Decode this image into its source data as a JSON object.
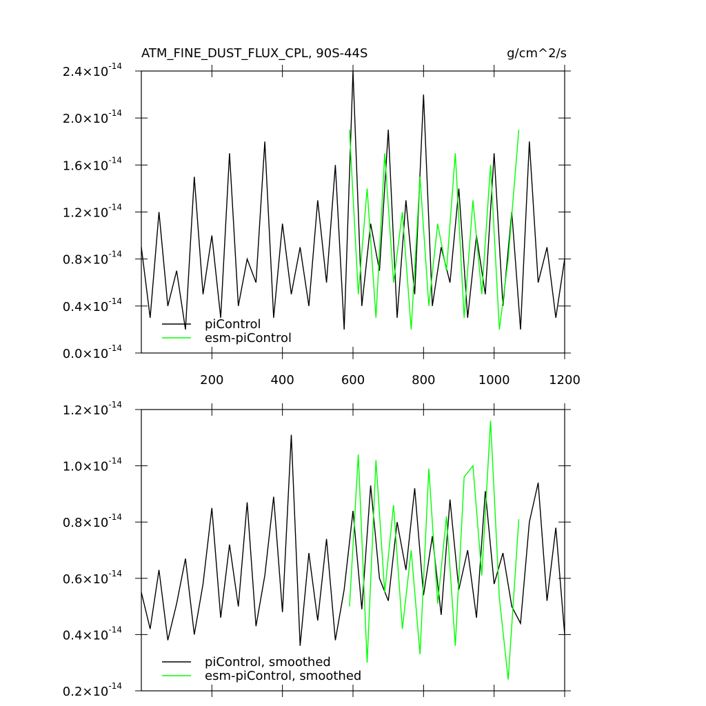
{
  "chart_data": [
    {
      "type": "line",
      "title": "ATM_FINE_DUST_FLUX_CPL, 90S-44S",
      "units": "g/cm^2/s",
      "xlim": [
        0,
        1200
      ],
      "xticks": [
        200,
        400,
        600,
        800,
        1000,
        1200
      ],
      "ylim": [
        0,
        2.4e-14
      ],
      "yticks": [
        {
          "value": 0,
          "label": "0.0×10",
          "exponent": "-14"
        },
        {
          "value": 4e-15,
          "label": "0.4×10",
          "exponent": "-14"
        },
        {
          "value": 8e-15,
          "label": "0.8×10",
          "exponent": "-14"
        },
        {
          "value": 1.2e-14,
          "label": "1.2×10",
          "exponent": "-14"
        },
        {
          "value": 1.6e-14,
          "label": "1.6×10",
          "exponent": "-14"
        },
        {
          "value": 2e-14,
          "label": "2.0×10",
          "exponent": "-14"
        },
        {
          "value": 2.4e-14,
          "label": "2.4×10",
          "exponent": "-14"
        }
      ],
      "series": [
        {
          "name": "piControl",
          "color": "#000000",
          "x": [
            0,
            25,
            50,
            75,
            100,
            125,
            150,
            175,
            200,
            225,
            250,
            275,
            300,
            325,
            350,
            375,
            400,
            425,
            450,
            475,
            500,
            525,
            550,
            575,
            600,
            625,
            650,
            675,
            700,
            725,
            750,
            775,
            800,
            825,
            850,
            875,
            900,
            925,
            950,
            975,
            1000,
            1025,
            1050,
            1075,
            1100,
            1125,
            1150,
            1175,
            1200
          ],
          "values": [
            9e-15,
            3e-15,
            1.2e-14,
            4e-15,
            7e-15,
            2e-15,
            1.5e-14,
            5e-15,
            1e-14,
            3e-15,
            1.7e-14,
            4e-15,
            8e-15,
            6e-15,
            1.8e-14,
            3e-15,
            1.1e-14,
            5e-15,
            9e-15,
            4e-15,
            1.3e-14,
            6e-15,
            1.6e-14,
            2e-15,
            2.4e-14,
            4e-15,
            1.1e-14,
            7e-15,
            1.9e-14,
            3e-15,
            1.3e-14,
            5e-15,
            2.2e-14,
            4e-15,
            9e-15,
            6e-15,
            1.4e-14,
            3e-15,
            1e-14,
            5e-15,
            1.7e-14,
            4e-15,
            1.2e-14,
            2e-15,
            1.8e-14,
            6e-15,
            9e-15,
            3e-15,
            8e-15
          ]
        },
        {
          "name": "esm-piControl",
          "color": "#00ff00",
          "x": [
            590,
            615,
            640,
            665,
            690,
            715,
            740,
            765,
            790,
            815,
            840,
            865,
            890,
            915,
            940,
            965,
            990,
            1015,
            1040,
            1070
          ],
          "values": [
            1.9e-14,
            5e-15,
            1.4e-14,
            3e-15,
            1.7e-14,
            6e-15,
            1.2e-14,
            2e-15,
            1.5e-14,
            4e-15,
            1.1e-14,
            7e-15,
            1.7e-14,
            3e-15,
            1.3e-14,
            5e-15,
            1.6e-14,
            2e-15,
            8e-15,
            1.9e-14
          ]
        }
      ]
    },
    {
      "type": "line",
      "xlim": [
        0,
        1200
      ],
      "xticks": [
        200,
        400,
        600,
        800,
        1000,
        1200
      ],
      "ylim": [
        2e-15,
        1.2e-14
      ],
      "yticks": [
        {
          "value": 2e-15,
          "label": "0.2×10",
          "exponent": "-14"
        },
        {
          "value": 4e-15,
          "label": "0.4×10",
          "exponent": "-14"
        },
        {
          "value": 6e-15,
          "label": "0.6×10",
          "exponent": "-14"
        },
        {
          "value": 8e-15,
          "label": "0.8×10",
          "exponent": "-14"
        },
        {
          "value": 1e-14,
          "label": "1.0×10",
          "exponent": "-14"
        },
        {
          "value": 1.2e-14,
          "label": "1.2×10",
          "exponent": "-14"
        }
      ],
      "series": [
        {
          "name": "piControl, smoothed",
          "color": "#000000",
          "x": [
            0,
            25,
            50,
            75,
            100,
            125,
            150,
            175,
            200,
            225,
            250,
            275,
            300,
            325,
            350,
            375,
            400,
            425,
            450,
            475,
            500,
            525,
            550,
            575,
            600,
            625,
            650,
            675,
            700,
            725,
            750,
            775,
            800,
            825,
            850,
            875,
            900,
            925,
            950,
            975,
            1000,
            1025,
            1050,
            1075,
            1100,
            1125,
            1150,
            1175,
            1200
          ],
          "values": [
            5.5e-15,
            4.2e-15,
            6.3e-15,
            3.8e-15,
            5.1e-15,
            6.7e-15,
            4e-15,
            5.8e-15,
            8.5e-15,
            4.6e-15,
            7.2e-15,
            5e-15,
            8.7e-15,
            4.3e-15,
            6.1e-15,
            8.9e-15,
            4.8e-15,
            1.11e-14,
            3.6e-15,
            6.9e-15,
            4.5e-15,
            7.4e-15,
            3.8e-15,
            5.6e-15,
            8.4e-15,
            4.9e-15,
            9.3e-15,
            6e-15,
            5.2e-15,
            8e-15,
            6.3e-15,
            9.2e-15,
            5.4e-15,
            7.5e-15,
            4.7e-15,
            8.8e-15,
            5.6e-15,
            7e-15,
            4.6e-15,
            9.1e-15,
            5.8e-15,
            6.9e-15,
            5e-15,
            4.4e-15,
            8e-15,
            9.4e-15,
            5.2e-15,
            7.8e-15,
            4e-15
          ]
        },
        {
          "name": "esm-piControl, smoothed",
          "color": "#00ff00",
          "x": [
            590,
            615,
            640,
            665,
            690,
            715,
            740,
            765,
            790,
            815,
            840,
            865,
            890,
            915,
            940,
            965,
            990,
            1015,
            1040,
            1070
          ],
          "values": [
            5e-15,
            1.04e-14,
            3e-15,
            1.02e-14,
            5.5e-15,
            8.6e-15,
            4.2e-15,
            7e-15,
            3.3e-15,
            9.9e-15,
            5.1e-15,
            8.2e-15,
            3.6e-15,
            9.6e-15,
            1e-14,
            6.1e-15,
            1.16e-14,
            5.3e-15,
            2.4e-15,
            8.1e-15
          ]
        }
      ]
    }
  ]
}
